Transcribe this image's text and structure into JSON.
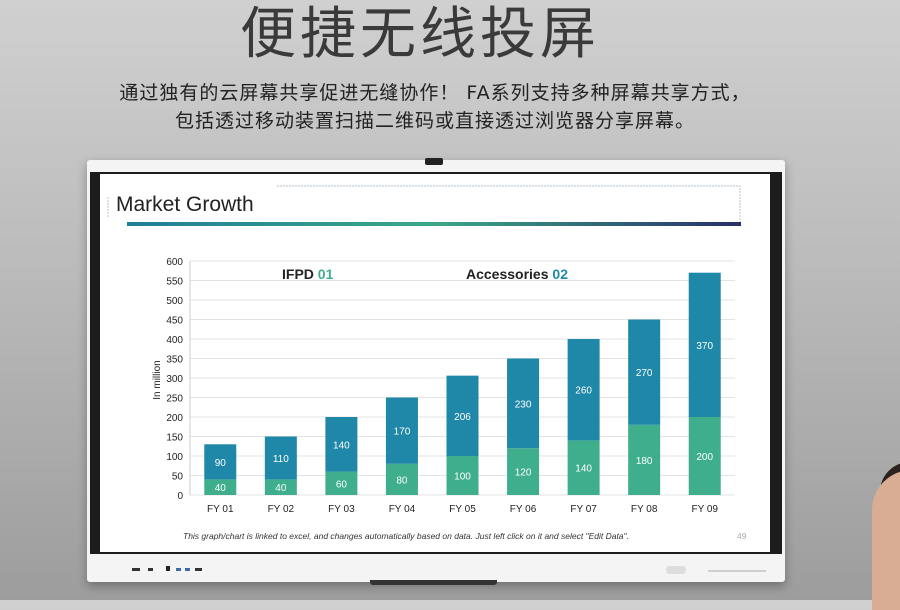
{
  "headline": "便捷无线投屏",
  "subtitle_lines": [
    "通过独有的云屏幕共享促进无缝协作！ FA系列支持多种屏幕共享方式，",
    "包括透过移动装置扫描二维码或直接透过浏览器分享屏幕。"
  ],
  "slide": {
    "title": "Market Growth",
    "footnote": "This graph/chart is linked to excel, and changes automatically based on data. Just left click on it and select \"Edit Data\".",
    "page_number": "49"
  },
  "colors": {
    "ifpd": "#3fae8c",
    "accessories": "#1f87a8",
    "legend_ifpd_num": "#3fae8c",
    "legend_acc_num": "#1f87a8"
  },
  "chart_data": {
    "type": "bar",
    "stacked": true,
    "title": "Market Growth",
    "ylabel": "In million",
    "xlabel": "",
    "ylim": [
      0,
      600
    ],
    "yticks": [
      0,
      50,
      100,
      150,
      200,
      250,
      300,
      350,
      400,
      450,
      500,
      550,
      600
    ],
    "grid": true,
    "categories": [
      "FY 01",
      "FY 02",
      "FY 03",
      "FY 04",
      "FY 05",
      "FY 06",
      "FY 07",
      "FY 08",
      "FY 09"
    ],
    "series": [
      {
        "name": "IFPD",
        "tag": "01",
        "values": [
          40,
          40,
          60,
          80,
          100,
          120,
          140,
          180,
          200
        ]
      },
      {
        "name": "Accessories",
        "tag": "02",
        "values": [
          90,
          110,
          140,
          170,
          206,
          230,
          260,
          270,
          370
        ]
      }
    ],
    "legend_position": "top"
  }
}
